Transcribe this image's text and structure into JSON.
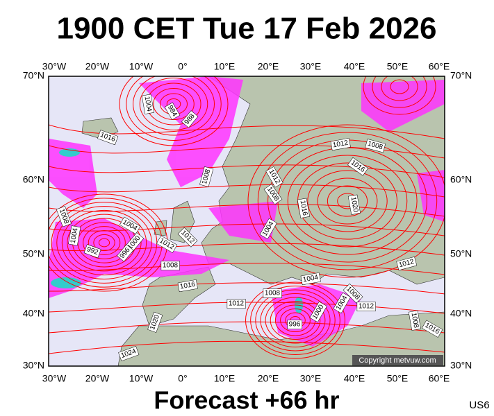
{
  "title": "1900 CET Tue 17 Feb 2026",
  "footer": "Forecast +66 hr",
  "code": "US6",
  "copyright": "Copyright metvuw.com",
  "longitudes": [
    "30°W",
    "20°W",
    "10°W",
    "0°",
    "10°E",
    "20°E",
    "30°E",
    "40°E",
    "50°E",
    "60°E"
  ],
  "latitudes": [
    "70°N",
    "60°N",
    "50°N",
    "40°N",
    "30°N"
  ],
  "isobars": [
    "1004",
    "984",
    "988",
    "1016",
    "1008",
    "1012",
    "1008",
    "1016",
    "1012",
    "1008",
    "1016",
    "1020",
    "1004",
    "1008",
    "1004",
    "1004",
    "1000",
    "992",
    "996",
    "1012",
    "1012",
    "1008",
    "1016",
    "1004",
    "1008",
    "1008",
    "1012",
    "1004",
    "1012",
    "1000",
    "996",
    "1012",
    "1008",
    "1016",
    "1020",
    "1024"
  ]
}
